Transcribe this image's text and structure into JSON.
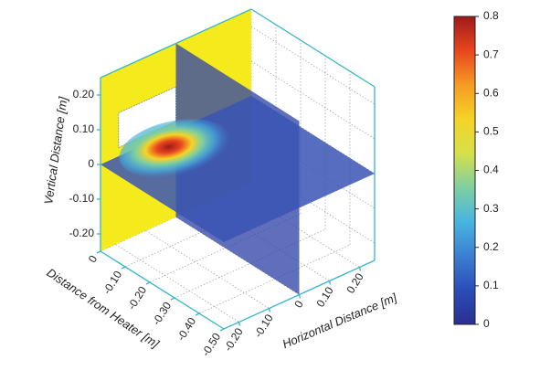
{
  "chart_data": {
    "type": "slice3d",
    "zlabel": "Vertical Distance [m]",
    "ylabel": "Distance from Heater [m]",
    "xlabel": "Horizontal Distance [m]",
    "xlim": [
      -0.25,
      0.25
    ],
    "ylim": [
      0,
      -0.5
    ],
    "zlim": [
      -0.25,
      0.25
    ],
    "xticks": [
      {
        "value": -0.2,
        "label": "-0.20"
      },
      {
        "value": -0.1,
        "label": "-0.10"
      },
      0,
      {
        "value": 0.1,
        "label": "0.10"
      },
      {
        "value": 0.2,
        "label": "0.20"
      }
    ],
    "yticks": [
      0,
      {
        "value": -0.1,
        "label": "-0.10"
      },
      {
        "value": -0.2,
        "label": "-0.20"
      },
      {
        "value": -0.3,
        "label": "-0.30"
      },
      {
        "value": -0.4,
        "label": "-0.40"
      },
      {
        "value": -0.5,
        "label": "-0.50"
      }
    ],
    "zticks": [
      {
        "value": 0.2,
        "label": "0.20"
      },
      {
        "value": 0.1,
        "label": "0.10"
      },
      0,
      {
        "value": -0.1,
        "label": "-0.10"
      },
      {
        "value": -0.2,
        "label": "-0.20"
      }
    ],
    "grid": true,
    "colorbar": {
      "clim": [
        0,
        0.8
      ],
      "ticks": [
        0,
        0.1,
        0.2,
        0.3,
        0.4,
        0.5,
        0.6,
        0.7,
        0.8
      ],
      "colors": [
        "#2b2f8f",
        "#2a4db8",
        "#3b7fd0",
        "#48b5e0",
        "#7fcfa0",
        "#d6e04a",
        "#f5d327",
        "#f59b24",
        "#e8461e",
        "#9e1a1a"
      ]
    }
  }
}
